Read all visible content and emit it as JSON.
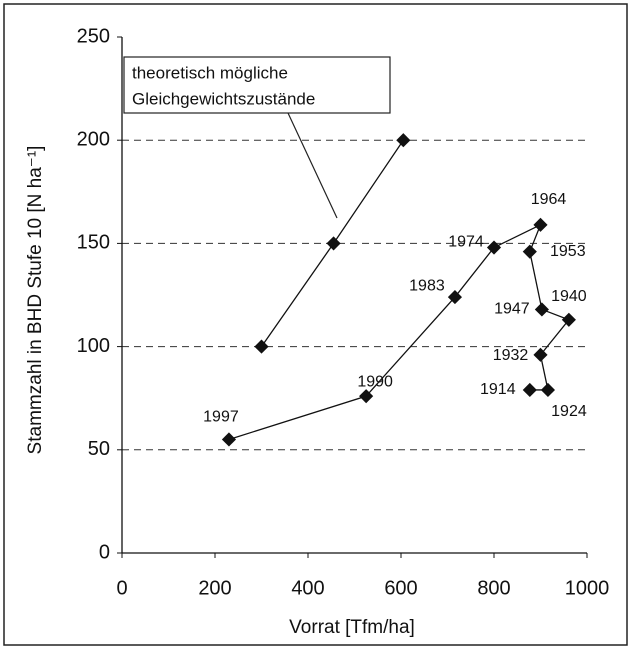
{
  "chart_data": {
    "type": "line",
    "xlabel": "Vorrat [Tfm/ha]",
    "ylabel": "Stammzahl in BHD Stufe 10 [N ha⁻¹]",
    "annotation": [
      "theoretisch mögliche",
      "Gleichgewichtszustände"
    ],
    "xlim": [
      0,
      1000
    ],
    "xticks": [
      0,
      200,
      400,
      600,
      800,
      1000
    ],
    "ylim": [
      0,
      250
    ],
    "yticks": [
      0,
      50,
      100,
      150,
      200,
      250
    ],
    "grid": true,
    "series": [
      {
        "color": "#111111",
        "x": [
          300,
          455,
          605
        ],
        "values": [
          100,
          150,
          200
        ]
      },
      {
        "color": "#111111",
        "x": [
          877,
          916,
          900,
          961,
          903,
          877,
          900,
          800,
          716,
          525,
          230
        ],
        "values": [
          79,
          79,
          96,
          113,
          118,
          146,
          159,
          148,
          124,
          76,
          55
        ],
        "labels": [
          "1914",
          "1924",
          "1932",
          "1940",
          "1947",
          "1953",
          "1964",
          "1974",
          "1983",
          "1990",
          "1997"
        ]
      }
    ]
  }
}
